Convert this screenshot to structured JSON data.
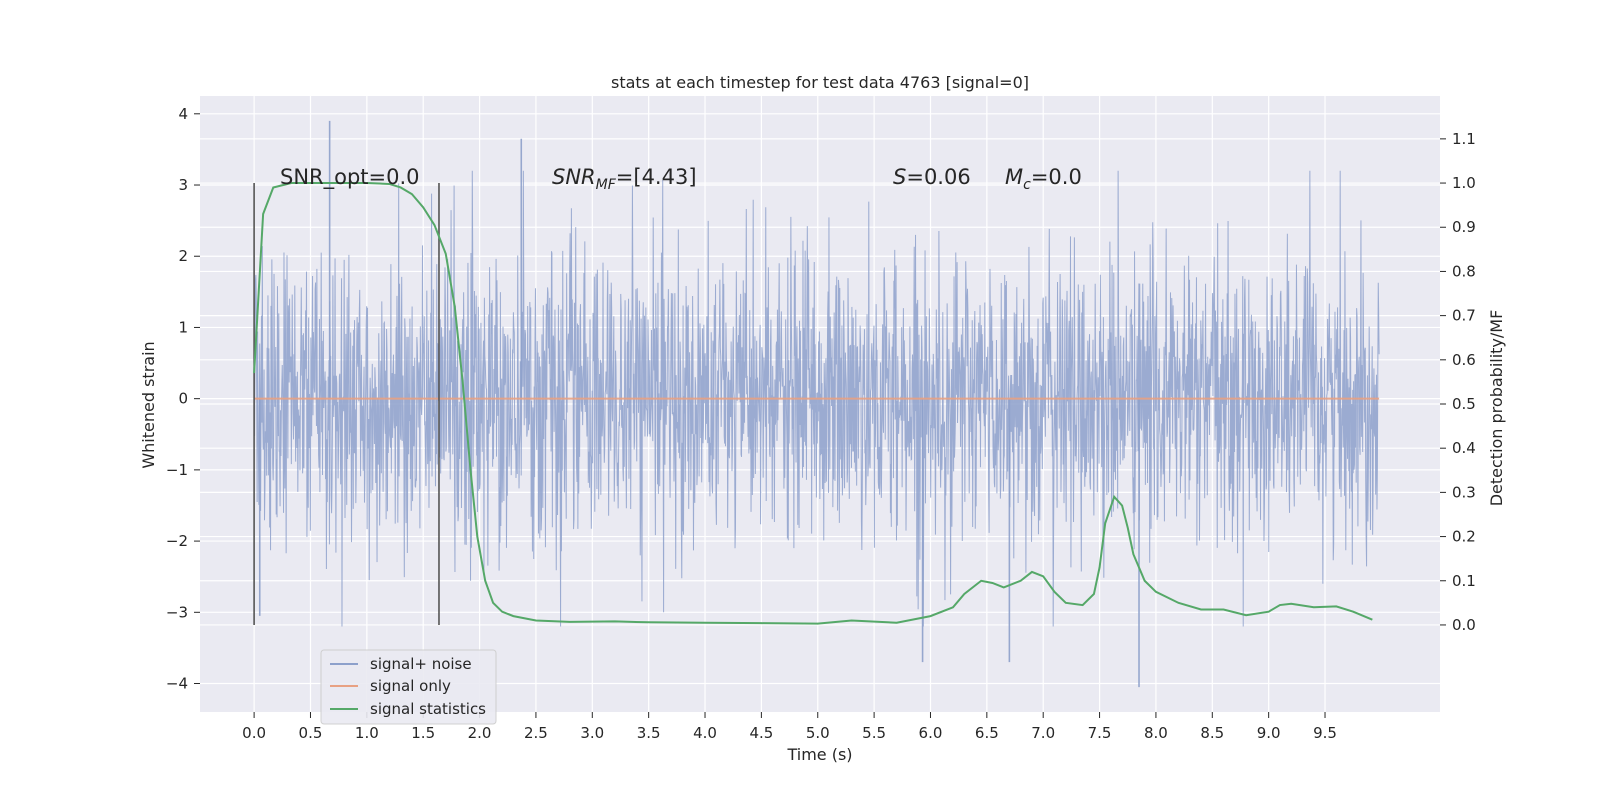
{
  "chart_data": {
    "type": "line",
    "title": "stats at each timestep for test data 4763 [signal=0]",
    "xlabel": "Time (s)",
    "ylabel_left": "Whitened strain",
    "ylabel_right": "Detection probability/MF",
    "xlim": [
      -0.48,
      10.52
    ],
    "ylim_left": [
      -4.4,
      4.25
    ],
    "ylim_right": [
      -0.197,
      1.197
    ],
    "x_ticks": [
      "0.0",
      "0.5",
      "1.0",
      "1.5",
      "2.0",
      "2.5",
      "3.0",
      "3.5",
      "4.0",
      "4.5",
      "5.0",
      "5.5",
      "6.0",
      "6.5",
      "7.0",
      "7.5",
      "8.0",
      "8.5",
      "9.0",
      "9.5"
    ],
    "y_ticks_left": [
      "4",
      "3",
      "2",
      "1",
      "0",
      "−1",
      "−2",
      "−3",
      "−4"
    ],
    "y_ticks_right": [
      "1.1",
      "1.0",
      "0.9",
      "0.8",
      "0.7",
      "0.6",
      "0.5",
      "0.4",
      "0.3",
      "0.2",
      "0.1",
      "0.0"
    ],
    "grid": true,
    "legend_position": "lower-left",
    "annotations": {
      "snr_opt": "SNR_opt=0.0",
      "snr_mf_base": "SNR",
      "snr_mf_sub": "MF",
      "snr_mf_value": "=[4.43]",
      "s_base": "S",
      "s_value": "=0.06",
      "mc_base": "M",
      "mc_sub": "c",
      "mc_value": "=0.0"
    },
    "window_markers": [
      0.0,
      1.64
    ],
    "series": [
      {
        "name": "signal+ noise",
        "axis": "left",
        "color": "#8da0cb",
        "x_range": [
          0.0,
          9.98
        ],
        "typical_abs_max": 2.3,
        "peak_values": [
          [
            0.67,
            3.9
          ],
          [
            2.37,
            3.65
          ],
          [
            5.93,
            -3.7
          ],
          [
            6.7,
            -3.7
          ],
          [
            7.85,
            -4.05
          ],
          [
            0.05,
            -3.05
          ]
        ]
      },
      {
        "name": "signal only",
        "axis": "left",
        "color": "#e8a183",
        "x": [
          0.0,
          9.98
        ],
        "y": [
          0.0,
          0.0
        ]
      },
      {
        "name": "signal statistics",
        "axis": "right",
        "color": "#55a868",
        "x": [
          0.0,
          0.08,
          0.17,
          0.33,
          0.6,
          1.0,
          1.2,
          1.3,
          1.4,
          1.5,
          1.6,
          1.7,
          1.78,
          1.85,
          1.92,
          1.98,
          2.05,
          2.12,
          2.2,
          2.3,
          2.5,
          2.8,
          3.2,
          3.5,
          4.0,
          4.5,
          5.0,
          5.3,
          5.7,
          6.0,
          6.2,
          6.3,
          6.45,
          6.55,
          6.65,
          6.8,
          6.9,
          7.0,
          7.1,
          7.2,
          7.35,
          7.45,
          7.5,
          7.55,
          7.63,
          7.7,
          7.75,
          7.8,
          7.9,
          8.0,
          8.2,
          8.4,
          8.6,
          8.8,
          9.0,
          9.1,
          9.2,
          9.4,
          9.6,
          9.75,
          9.92
        ],
        "y": [
          0.57,
          0.93,
          0.99,
          1.0,
          1.0,
          1.0,
          0.998,
          0.99,
          0.975,
          0.945,
          0.905,
          0.84,
          0.72,
          0.55,
          0.35,
          0.2,
          0.1,
          0.05,
          0.03,
          0.02,
          0.01,
          0.007,
          0.008,
          0.006,
          0.005,
          0.004,
          0.003,
          0.01,
          0.005,
          0.02,
          0.04,
          0.07,
          0.1,
          0.095,
          0.085,
          0.1,
          0.12,
          0.11,
          0.075,
          0.05,
          0.045,
          0.07,
          0.13,
          0.23,
          0.29,
          0.27,
          0.22,
          0.16,
          0.1,
          0.075,
          0.05,
          0.035,
          0.035,
          0.022,
          0.03,
          0.045,
          0.048,
          0.04,
          0.042,
          0.03,
          0.012
        ]
      }
    ]
  }
}
